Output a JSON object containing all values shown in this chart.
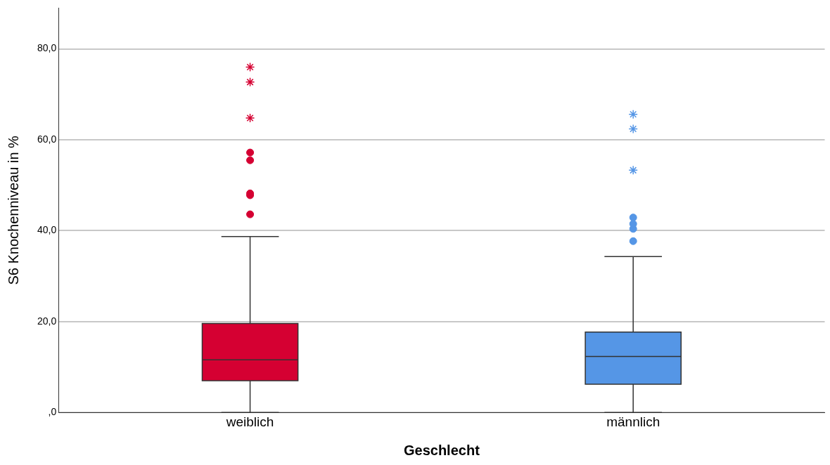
{
  "chart_data": {
    "type": "box",
    "xlabel": "Geschlecht",
    "ylabel": "S6 Knochenniveau in %",
    "categories": [
      "weiblich",
      "männlich"
    ],
    "colors": [
      "#d50032",
      "#5596e6"
    ],
    "boxes": [
      {
        "low": 0,
        "q1": 7.0,
        "median": 11.6,
        "q3": 19.6,
        "high": 38.7,
        "outliers": [
          43.6,
          47.8,
          48.2,
          55.5,
          57.2
        ]
      },
      {
        "low": 0,
        "q1": 6.2,
        "median": 12.3,
        "q3": 17.7,
        "high": 34.3,
        "outliers": [
          37.7,
          40.4,
          41.5,
          42.9
        ]
      }
    ],
    "series": [
      {
        "type": "scatter",
        "marker": "cross",
        "x": [
          "weiblich",
          "weiblich",
          "weiblich",
          "männlich",
          "männlich",
          "männlich"
        ],
        "values": [
          64.8,
          72.7,
          76.0,
          53.3,
          62.4,
          65.6
        ],
        "colors": [
          "#d50032",
          "#d50032",
          "#d50032",
          "#5596e6",
          "#5596e6",
          "#5596e6"
        ]
      }
    ],
    "ylim": [
      0,
      89
    ],
    "yticks": [
      {
        "value": 0,
        "label": ",0"
      },
      {
        "value": 20,
        "label": "20,0"
      },
      {
        "value": 40,
        "label": "40,0"
      },
      {
        "value": 60,
        "label": "60,0"
      },
      {
        "value": 80,
        "label": "80,0"
      }
    ],
    "grid": "y",
    "legend": false
  }
}
